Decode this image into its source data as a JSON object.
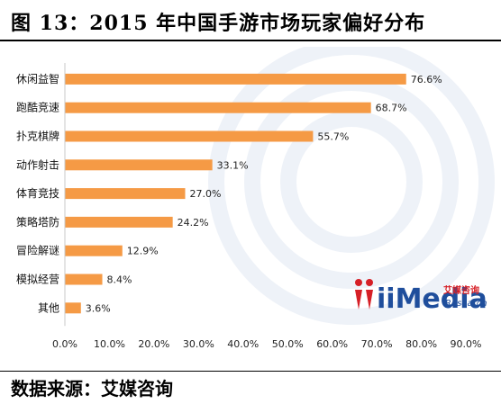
{
  "figure": {
    "title": "图 13：2015 年中国手游市场玩家偏好分布",
    "source_label": "数据来源：",
    "source_name": "艾媒咨询"
  },
  "logo": {
    "brand": "iiMedia",
    "brand_cn": "艾媒咨询",
    "brand_sub": "Research",
    "colors": {
      "red": "#d61f26",
      "blue": "#1f4e9c"
    }
  },
  "chart_data": {
    "type": "bar",
    "orientation": "horizontal",
    "categories": [
      "休闲益智",
      "跑酷竞速",
      "扑克棋牌",
      "动作射击",
      "体育竞技",
      "策略塔防",
      "冒险解谜",
      "模拟经营",
      "其他"
    ],
    "values": [
      76.6,
      68.7,
      55.7,
      33.1,
      27.0,
      24.2,
      12.9,
      8.4,
      3.6
    ],
    "data_labels": [
      "76.6%",
      "68.7%",
      "55.7%",
      "33.1%",
      "27.0%",
      "24.2%",
      "12.9%",
      "8.4%",
      "3.6%"
    ],
    "xlim": [
      0,
      90
    ],
    "xticks": [
      "0.0%",
      "10.0%",
      "20.0%",
      "30.0%",
      "40.0%",
      "50.0%",
      "60.0%",
      "70.0%",
      "80.0%",
      "90.0%"
    ],
    "bar_color": "#f59a45",
    "legend": "none",
    "grid": false
  }
}
